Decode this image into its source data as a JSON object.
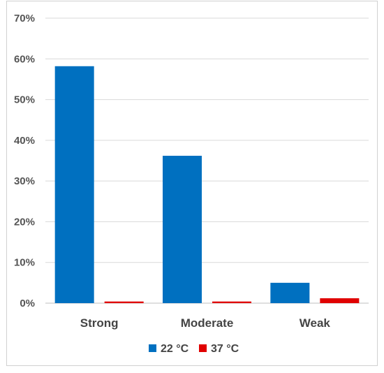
{
  "chart_data": {
    "type": "bar",
    "categories": [
      "Strong",
      "Moderate",
      "Weak"
    ],
    "series": [
      {
        "name": "22 °C",
        "color": "#0070C0",
        "values": [
          58.2,
          36.2,
          5.0
        ]
      },
      {
        "name": "37 °C",
        "color": "#E00000",
        "values": [
          0.4,
          0.4,
          1.2
        ]
      }
    ],
    "ylim": [
      0,
      70
    ],
    "yticks": [
      0,
      10,
      20,
      30,
      40,
      50,
      60,
      70
    ],
    "ytick_labels": [
      "0%",
      "10%",
      "20%",
      "30%",
      "40%",
      "50%",
      "60%",
      "70%"
    ],
    "grid": true,
    "legend": "bottom"
  }
}
